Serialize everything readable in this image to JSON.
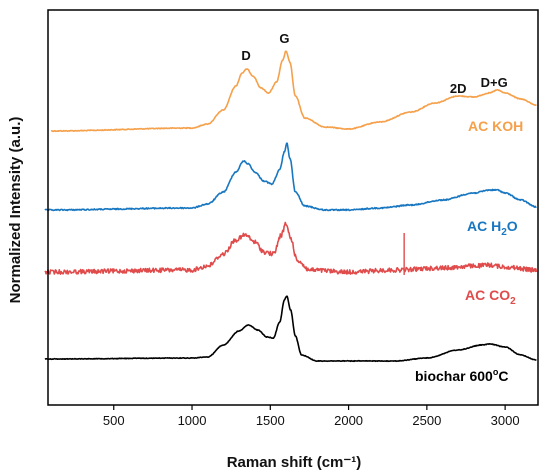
{
  "chart_data": {
    "type": "line",
    "xlabel": "Raman shift (cm⁻¹)",
    "ylabel": "Normalized Intensity (a.u.)",
    "xlim": [
      80,
      3210
    ],
    "x_ticks": [
      500,
      1000,
      1500,
      2000,
      2500,
      3000
    ],
    "y_ticks_shown": false,
    "grid": false,
    "legend": "inline labels at right of each trace",
    "series": [
      {
        "name": "AC KOH",
        "color": "#F5A04A",
        "noise": 0.4,
        "points": [
          [
            100,
            131
          ],
          [
            1000,
            128
          ],
          [
            1100,
            124
          ],
          [
            1200,
            110
          ],
          [
            1280,
            86
          ],
          [
            1320,
            73
          ],
          [
            1350,
            69
          ],
          [
            1390,
            76
          ],
          [
            1440,
            88
          ],
          [
            1490,
            93
          ],
          [
            1540,
            82
          ],
          [
            1580,
            60
          ],
          [
            1600,
            51
          ],
          [
            1625,
            62
          ],
          [
            1660,
            96
          ],
          [
            1720,
            118
          ],
          [
            1850,
            127
          ],
          [
            2000,
            129
          ],
          [
            2200,
            122
          ],
          [
            2400,
            112
          ],
          [
            2550,
            103
          ],
          [
            2700,
            96
          ],
          [
            2800,
            97
          ],
          [
            2900,
            93
          ],
          [
            2950,
            90
          ],
          [
            3000,
            93
          ],
          [
            3100,
            99
          ],
          [
            3200,
            105
          ]
        ]
      },
      {
        "name": "AC H2O",
        "color": "#1877C0",
        "noise": 0.6,
        "points": [
          [
            60,
            210
          ],
          [
            1000,
            208
          ],
          [
            1100,
            204
          ],
          [
            1200,
            192
          ],
          [
            1280,
            172
          ],
          [
            1330,
            161
          ],
          [
            1360,
            164
          ],
          [
            1400,
            172
          ],
          [
            1460,
            181
          ],
          [
            1510,
            184
          ],
          [
            1560,
            170
          ],
          [
            1590,
            152
          ],
          [
            1605,
            143
          ],
          [
            1625,
            158
          ],
          [
            1660,
            192
          ],
          [
            1720,
            206
          ],
          [
            1850,
            210
          ],
          [
            2000,
            210
          ],
          [
            2200,
            208
          ],
          [
            2400,
            205
          ],
          [
            2600,
            200
          ],
          [
            2800,
            193
          ],
          [
            2900,
            190
          ],
          [
            2950,
            190
          ],
          [
            3000,
            193
          ],
          [
            3100,
            200
          ],
          [
            3200,
            207
          ]
        ]
      },
      {
        "name": "AC CO2",
        "color": "#E04B4B",
        "noise": 2.2,
        "spike": [
          2355,
          233,
          275
        ],
        "points": [
          [
            60,
            272
          ],
          [
            1000,
            270
          ],
          [
            1100,
            266
          ],
          [
            1200,
            254
          ],
          [
            1280,
            240
          ],
          [
            1340,
            235
          ],
          [
            1400,
            242
          ],
          [
            1460,
            252
          ],
          [
            1520,
            254
          ],
          [
            1570,
            235
          ],
          [
            1600,
            224
          ],
          [
            1630,
            238
          ],
          [
            1670,
            260
          ],
          [
            1750,
            270
          ],
          [
            2000,
            272
          ],
          [
            2300,
            270
          ],
          [
            2600,
            268
          ],
          [
            2800,
            266
          ],
          [
            2900,
            265
          ],
          [
            3000,
            267
          ],
          [
            3200,
            270
          ]
        ]
      },
      {
        "name": "biochar 600°C",
        "color": "#000000",
        "noise": 0.3,
        "points": [
          [
            60,
            359
          ],
          [
            1000,
            358
          ],
          [
            1100,
            357
          ],
          [
            1200,
            345
          ],
          [
            1300,
            331
          ],
          [
            1360,
            325
          ],
          [
            1420,
            330
          ],
          [
            1480,
            337
          ],
          [
            1520,
            338
          ],
          [
            1560,
            322
          ],
          [
            1590,
            300
          ],
          [
            1605,
            296
          ],
          [
            1630,
            310
          ],
          [
            1660,
            336
          ],
          [
            1700,
            355
          ],
          [
            1800,
            361
          ],
          [
            2000,
            361
          ],
          [
            2300,
            361
          ],
          [
            2500,
            358
          ],
          [
            2700,
            350
          ],
          [
            2850,
            345
          ],
          [
            2900,
            344
          ],
          [
            3000,
            347
          ],
          [
            3100,
            355
          ],
          [
            3200,
            360
          ]
        ]
      }
    ],
    "annotations": [
      {
        "text": "D",
        "x": 1345
      },
      {
        "text": "G",
        "x": 1590
      },
      {
        "text": "2D",
        "x": 2700
      },
      {
        "text": "D+G",
        "x": 2930
      }
    ]
  },
  "labels": {
    "ac_koh": "AC KOH",
    "ac_h2o_prefix": "AC H",
    "ac_h2o_sub": "2",
    "ac_h2o_suffix": "O",
    "ac_co2_prefix": "AC CO",
    "ac_co2_sub": "2",
    "biochar_prefix": "biochar 600",
    "biochar_sup": "o",
    "biochar_suffix": "C"
  }
}
